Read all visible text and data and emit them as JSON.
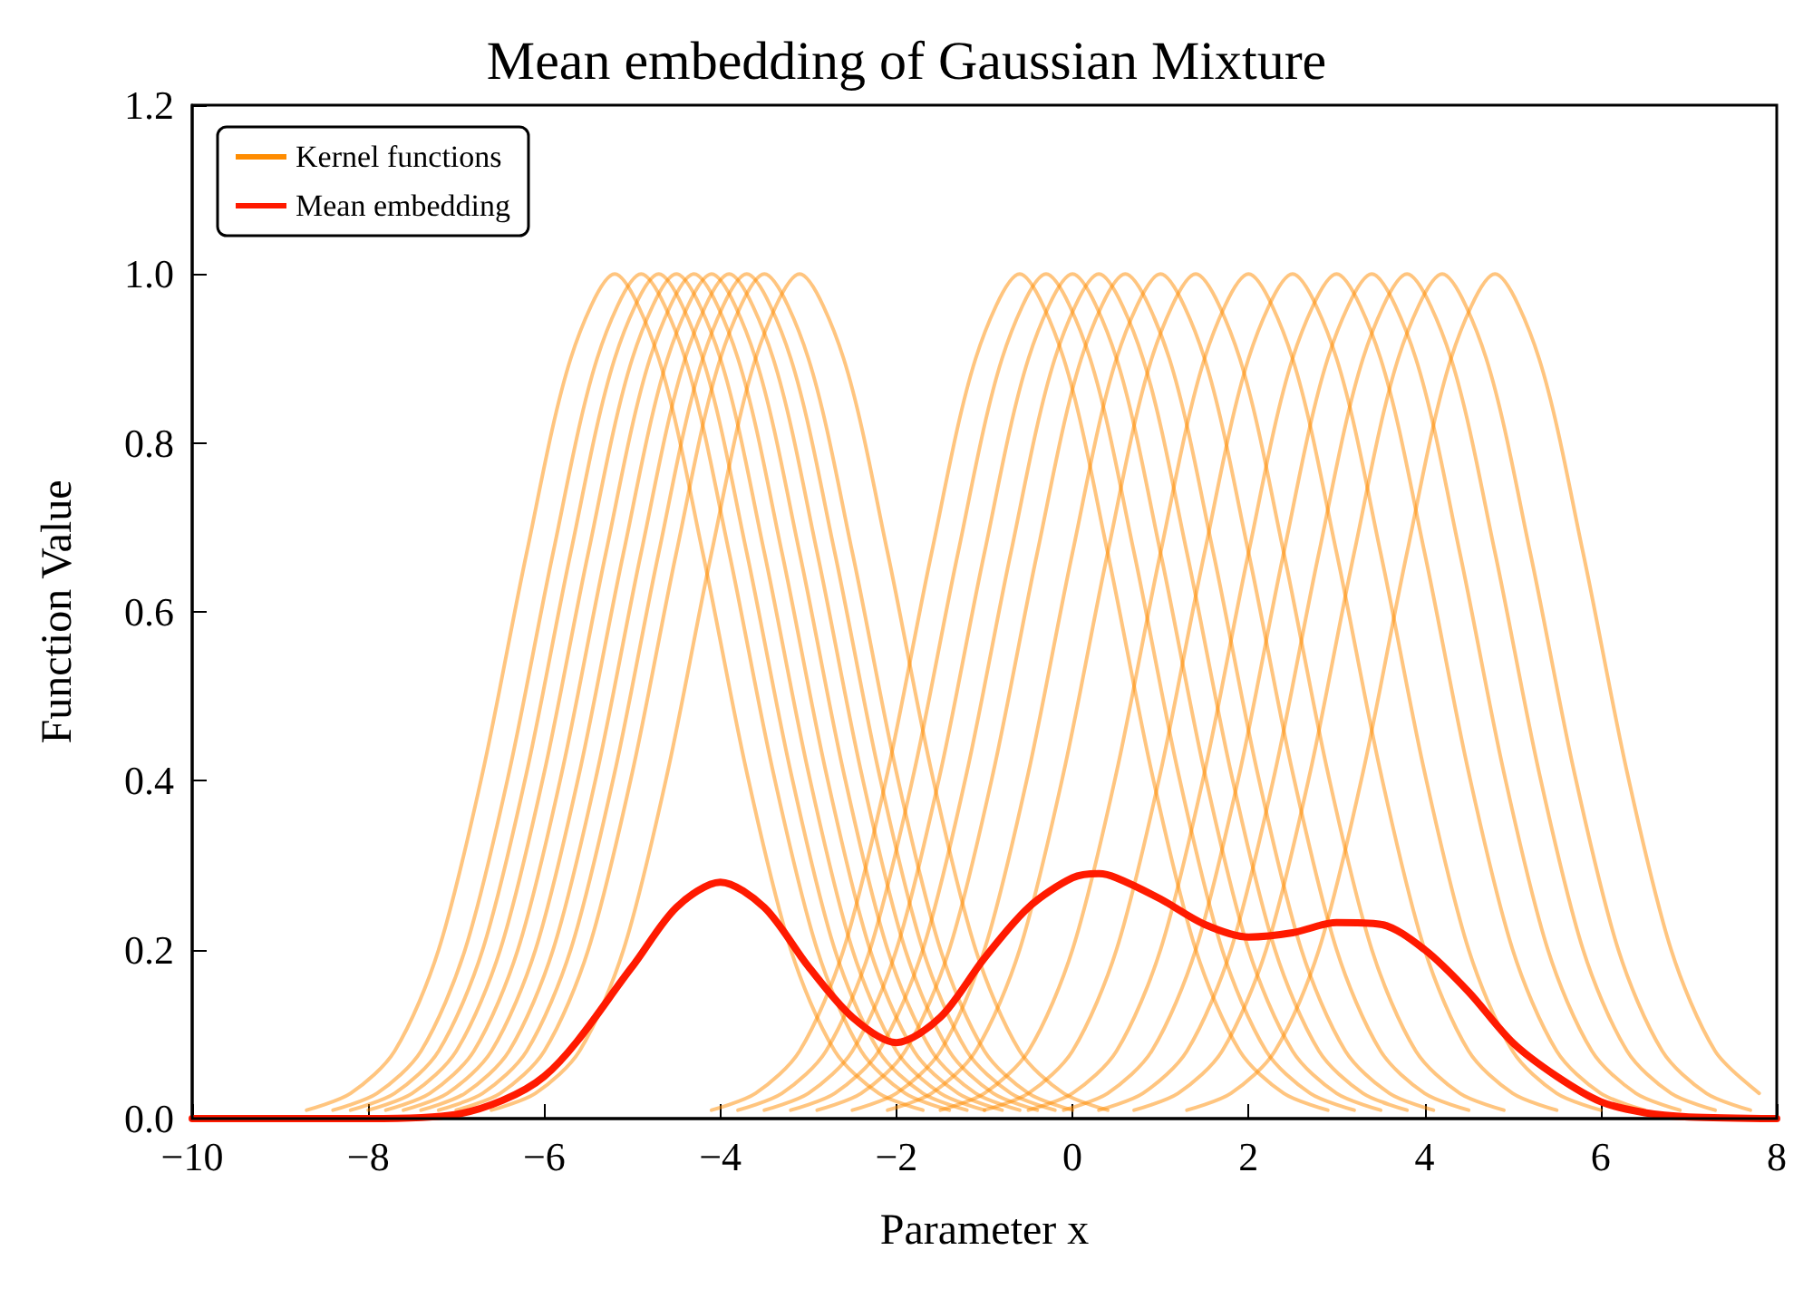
{
  "chart_data": {
    "type": "line",
    "title": "Mean embedding of Gaussian Mixture",
    "xlabel": "Parameter x",
    "ylabel": "Function Value",
    "xlim": [
      -10,
      8
    ],
    "xticks": [
      {
        "value": -10,
        "label": "−10"
      },
      {
        "value": -8,
        "label": "−8"
      },
      {
        "value": -6,
        "label": "−6"
      },
      {
        "value": -4,
        "label": "−4"
      },
      {
        "value": -2,
        "label": "−2"
      },
      0,
      2,
      4,
      6,
      8
    ],
    "ylim": [
      0,
      1.2
    ],
    "yticks": [
      {
        "value": 0,
        "label": "0.0"
      },
      {
        "value": 0.2,
        "label": "0.2"
      },
      {
        "value": 0.4,
        "label": "0.4"
      },
      {
        "value": 0.6,
        "label": "0.6"
      },
      {
        "value": 0.8,
        "label": "0.8"
      },
      {
        "value": 1,
        "label": "1.0"
      },
      {
        "value": 1.2,
        "label": "1.2"
      }
    ],
    "grid": false,
    "legend": "top left",
    "marker": "none",
    "line_style": "solid",
    "series": [
      {
        "name": "Kernel functions",
        "color": "#ff8c00",
        "x": [
          -8.7,
          -8.2,
          -7.7,
          -7.2,
          -6.7,
          -6.2,
          -5.7,
          -5.2,
          -4.7,
          -4.2,
          -3.7,
          -3.2,
          -2.7,
          -2.2,
          -1.7
        ],
        "values": [
          0.01,
          0.03,
          0.08,
          0.2,
          0.41,
          0.67,
          0.9,
          1,
          0.9,
          0.67,
          0.41,
          0.2,
          0.08,
          0.03,
          0.01
        ]
      },
      {
        "color": "#ff8c00",
        "x": [
          -8.4,
          -7.9,
          -7.4,
          -6.9,
          -6.4,
          -5.9,
          -5.4,
          -4.9,
          -4.4,
          -3.9,
          -3.4,
          -2.9,
          -2.4,
          -1.9,
          -1.4
        ],
        "values": [
          0.01,
          0.03,
          0.08,
          0.2,
          0.41,
          0.67,
          0.9,
          1,
          0.9,
          0.67,
          0.41,
          0.2,
          0.08,
          0.03,
          0.01
        ]
      },
      {
        "color": "#ff8c00",
        "x": [
          -8.2,
          -7.7,
          -7.2,
          -6.7,
          -6.2,
          -5.7,
          -5.2,
          -4.7,
          -4.2,
          -3.7,
          -3.2,
          -2.7,
          -2.2,
          -1.7,
          -1.2
        ],
        "values": [
          0.01,
          0.03,
          0.08,
          0.2,
          0.41,
          0.67,
          0.9,
          1,
          0.9,
          0.67,
          0.41,
          0.2,
          0.08,
          0.03,
          0.01
        ]
      },
      {
        "color": "#ff8c00",
        "x": [
          -8,
          -7.5,
          -7,
          -6.5,
          -6,
          -5.5,
          -5,
          -4.5,
          -4,
          -3.5,
          -3,
          -2.5,
          -2,
          -1.5,
          -1
        ],
        "values": [
          0.01,
          0.03,
          0.08,
          0.2,
          0.41,
          0.67,
          0.9,
          1,
          0.9,
          0.67,
          0.41,
          0.2,
          0.08,
          0.03,
          0.01
        ]
      },
      {
        "color": "#ff8c00",
        "x": [
          -7.8,
          -7.3,
          -6.8,
          -6.3,
          -5.8,
          -5.3,
          -4.8,
          -4.3,
          -3.8,
          -3.3,
          -2.8,
          -2.3,
          -1.8,
          -1.3,
          -0.8
        ],
        "values": [
          0.01,
          0.03,
          0.08,
          0.2,
          0.41,
          0.67,
          0.9,
          1,
          0.9,
          0.67,
          0.41,
          0.2,
          0.08,
          0.03,
          0.01
        ]
      },
      {
        "color": "#ff8c00",
        "x": [
          -7.6,
          -7.1,
          -6.6,
          -6.1,
          -5.6,
          -5.1,
          -4.6,
          -4.1,
          -3.6,
          -3.1,
          -2.6,
          -2.1,
          -1.6,
          -1.1,
          -0.6
        ],
        "values": [
          0.01,
          0.03,
          0.08,
          0.2,
          0.41,
          0.67,
          0.9,
          1,
          0.9,
          0.67,
          0.41,
          0.2,
          0.08,
          0.03,
          0.01
        ]
      },
      {
        "color": "#ff8c00",
        "x": [
          -7.4,
          -6.9,
          -6.4,
          -5.9,
          -5.4,
          -4.9,
          -4.4,
          -3.9,
          -3.4,
          -2.9,
          -2.4,
          -1.9,
          -1.4,
          -0.9,
          -0.4
        ],
        "values": [
          0.01,
          0.03,
          0.08,
          0.2,
          0.41,
          0.67,
          0.9,
          1,
          0.9,
          0.67,
          0.41,
          0.2,
          0.08,
          0.03,
          0.01
        ]
      },
      {
        "color": "#ff8c00",
        "x": [
          -7.2,
          -6.7,
          -6.2,
          -5.7,
          -5.2,
          -4.7,
          -4.2,
          -3.7,
          -3.2,
          -2.7,
          -2.2,
          -1.7,
          -1.2,
          -0.7,
          -0.2
        ],
        "values": [
          0.01,
          0.03,
          0.08,
          0.2,
          0.41,
          0.67,
          0.9,
          1,
          0.9,
          0.67,
          0.41,
          0.2,
          0.08,
          0.03,
          0.01
        ]
      },
      {
        "color": "#ff8c00",
        "x": [
          -7,
          -6.5,
          -6,
          -5.5,
          -5,
          -4.5,
          -4,
          -3.5,
          -3,
          -2.5,
          -2,
          -1.5,
          -1,
          -0.5,
          0
        ],
        "values": [
          0.01,
          0.03,
          0.08,
          0.2,
          0.41,
          0.67,
          0.9,
          1,
          0.9,
          0.67,
          0.41,
          0.2,
          0.08,
          0.03,
          0.01
        ]
      },
      {
        "color": "#ff8c00",
        "x": [
          -6.6,
          -6.1,
          -5.6,
          -5.1,
          -4.6,
          -4.1,
          -3.6,
          -3.1,
          -2.6,
          -2.1,
          -1.6,
          -1.1,
          -0.6,
          -0.1,
          0.4
        ],
        "values": [
          0.01,
          0.03,
          0.08,
          0.2,
          0.41,
          0.67,
          0.9,
          1,
          0.9,
          0.67,
          0.41,
          0.2,
          0.08,
          0.03,
          0.01
        ]
      },
      {
        "color": "#ff8c00",
        "x": [
          -4.1,
          -3.6,
          -3.1,
          -2.6,
          -2.1,
          -1.6,
          -1.1,
          -0.6,
          -0.1,
          0.4,
          0.9,
          1.4,
          1.9,
          2.4,
          2.9
        ],
        "values": [
          0.01,
          0.03,
          0.08,
          0.2,
          0.41,
          0.67,
          0.9,
          1,
          0.9,
          0.67,
          0.41,
          0.2,
          0.08,
          0.03,
          0.01
        ]
      },
      {
        "color": "#ff8c00",
        "x": [
          -3.8,
          -3.3,
          -2.8,
          -2.3,
          -1.8,
          -1.3,
          -0.8,
          -0.3,
          0.2,
          0.7,
          1.2,
          1.7,
          2.2,
          2.7,
          3.2
        ],
        "values": [
          0.01,
          0.03,
          0.08,
          0.2,
          0.41,
          0.67,
          0.9,
          1,
          0.9,
          0.67,
          0.41,
          0.2,
          0.08,
          0.03,
          0.01
        ]
      },
      {
        "color": "#ff8c00",
        "x": [
          -3.5,
          -3,
          -2.5,
          -2,
          -1.5,
          -1,
          -0.5,
          0,
          0.5,
          1,
          1.5,
          2,
          2.5,
          3,
          3.5
        ],
        "values": [
          0.01,
          0.03,
          0.08,
          0.2,
          0.41,
          0.67,
          0.9,
          1,
          0.9,
          0.67,
          0.41,
          0.2,
          0.08,
          0.03,
          0.01
        ]
      },
      {
        "color": "#ff8c00",
        "x": [
          -3.2,
          -2.7,
          -2.2,
          -1.7,
          -1.2,
          -0.7,
          -0.2,
          0.3,
          0.8,
          1.3,
          1.8,
          2.3,
          2.8,
          3.3,
          3.8
        ],
        "values": [
          0.01,
          0.03,
          0.08,
          0.2,
          0.41,
          0.67,
          0.9,
          1,
          0.9,
          0.67,
          0.41,
          0.2,
          0.08,
          0.03,
          0.01
        ]
      },
      {
        "color": "#ff8c00",
        "x": [
          -2.9,
          -2.4,
          -1.9,
          -1.4,
          -0.9,
          -0.4,
          0.1,
          0.6,
          1.1,
          1.6,
          2.1,
          2.6,
          3.1,
          3.6,
          4.1
        ],
        "values": [
          0.01,
          0.03,
          0.08,
          0.2,
          0.41,
          0.67,
          0.9,
          1,
          0.9,
          0.67,
          0.41,
          0.2,
          0.08,
          0.03,
          0.01
        ]
      },
      {
        "color": "#ff8c00",
        "x": [
          -2.5,
          -2,
          -1.5,
          -1,
          -0.5,
          0,
          0.5,
          1,
          1.5,
          2,
          2.5,
          3,
          3.5,
          4,
          4.5
        ],
        "values": [
          0.01,
          0.03,
          0.08,
          0.2,
          0.41,
          0.67,
          0.9,
          1,
          0.9,
          0.67,
          0.41,
          0.2,
          0.08,
          0.03,
          0.01
        ]
      },
      {
        "color": "#ff8c00",
        "x": [
          -2.1,
          -1.6,
          -1.1,
          -0.6,
          -0.1,
          0.4,
          0.9,
          1.4,
          1.9,
          2.4,
          2.9,
          3.4,
          3.9,
          4.4,
          4.9
        ],
        "values": [
          0.01,
          0.03,
          0.08,
          0.2,
          0.41,
          0.67,
          0.9,
          1,
          0.9,
          0.67,
          0.41,
          0.2,
          0.08,
          0.03,
          0.01
        ]
      },
      {
        "color": "#ff8c00",
        "x": [
          -1.5,
          -1,
          -0.5,
          0,
          0.5,
          1,
          1.5,
          2,
          2.5,
          3,
          3.5,
          4,
          4.5,
          5,
          5.5
        ],
        "values": [
          0.01,
          0.03,
          0.08,
          0.2,
          0.41,
          0.67,
          0.9,
          1,
          0.9,
          0.67,
          0.41,
          0.2,
          0.08,
          0.03,
          0.01
        ]
      },
      {
        "color": "#ff8c00",
        "x": [
          -1,
          -0.5,
          0,
          0.5,
          1,
          1.5,
          2,
          2.5,
          3,
          3.5,
          4,
          4.5,
          5,
          5.5,
          6
        ],
        "values": [
          0.01,
          0.03,
          0.08,
          0.2,
          0.41,
          0.67,
          0.9,
          1,
          0.9,
          0.67,
          0.41,
          0.2,
          0.08,
          0.03,
          0.01
        ]
      },
      {
        "color": "#ff8c00",
        "x": [
          -0.5,
          0,
          0.5,
          1,
          1.5,
          2,
          2.5,
          3,
          3.5,
          4,
          4.5,
          5,
          5.5,
          6,
          6.5
        ],
        "values": [
          0.01,
          0.03,
          0.08,
          0.2,
          0.41,
          0.67,
          0.9,
          1,
          0.9,
          0.67,
          0.41,
          0.2,
          0.08,
          0.03,
          0.01
        ]
      },
      {
        "color": "#ff8c00",
        "x": [
          -0.1,
          0.4,
          0.9,
          1.4,
          1.9,
          2.4,
          2.9,
          3.4,
          3.9,
          4.4,
          4.9,
          5.4,
          5.9,
          6.4,
          6.9
        ],
        "values": [
          0.01,
          0.03,
          0.08,
          0.2,
          0.41,
          0.67,
          0.9,
          1,
          0.9,
          0.67,
          0.41,
          0.2,
          0.08,
          0.03,
          0.01
        ]
      },
      {
        "color": "#ff8c00",
        "x": [
          0.3,
          0.8,
          1.3,
          1.8,
          2.3,
          2.8,
          3.3,
          3.8,
          4.3,
          4.8,
          5.3,
          5.8,
          6.3,
          6.8,
          7.3
        ],
        "values": [
          0.01,
          0.03,
          0.08,
          0.2,
          0.41,
          0.67,
          0.9,
          1,
          0.9,
          0.67,
          0.41,
          0.2,
          0.08,
          0.03,
          0.01
        ]
      },
      {
        "color": "#ff8c00",
        "x": [
          0.7,
          1.2,
          1.7,
          2.2,
          2.7,
          3.2,
          3.7,
          4.2,
          4.7,
          5.2,
          5.7,
          6.2,
          6.7,
          7.2,
          7.7
        ],
        "values": [
          0.01,
          0.03,
          0.08,
          0.2,
          0.41,
          0.67,
          0.9,
          1,
          0.9,
          0.67,
          0.41,
          0.2,
          0.08,
          0.03,
          0.01
        ]
      },
      {
        "color": "#ff8c00",
        "x": [
          1.3,
          1.8,
          2.3,
          2.8,
          3.3,
          3.8,
          4.3,
          4.8,
          5.3,
          5.8,
          6.3,
          6.8,
          7.3,
          7.8
        ],
        "values": [
          0.01,
          0.03,
          0.08,
          0.2,
          0.41,
          0.67,
          0.9,
          1,
          0.9,
          0.67,
          0.41,
          0.2,
          0.08,
          0.03
        ]
      },
      {
        "name": "Mean embedding",
        "color": "#ff1a00",
        "x": [
          -10,
          -8,
          -7,
          -6,
          -5,
          -4.5,
          -4,
          -3.5,
          -3,
          -2.5,
          -2,
          -1.5,
          -1,
          -0.5,
          0,
          0.3,
          0.5,
          1,
          1.5,
          2,
          2.5,
          3,
          3.5,
          4,
          4.5,
          5,
          5.5,
          6,
          6.5,
          7,
          8
        ],
        "values": [
          0,
          0,
          0.005,
          0.05,
          0.18,
          0.25,
          0.28,
          0.25,
          0.18,
          0.12,
          0.09,
          0.12,
          0.19,
          0.25,
          0.285,
          0.29,
          0.285,
          0.26,
          0.23,
          0.215,
          0.22,
          0.232,
          0.23,
          0.2,
          0.15,
          0.09,
          0.05,
          0.02,
          0.007,
          0.002,
          0
        ]
      }
    ]
  }
}
